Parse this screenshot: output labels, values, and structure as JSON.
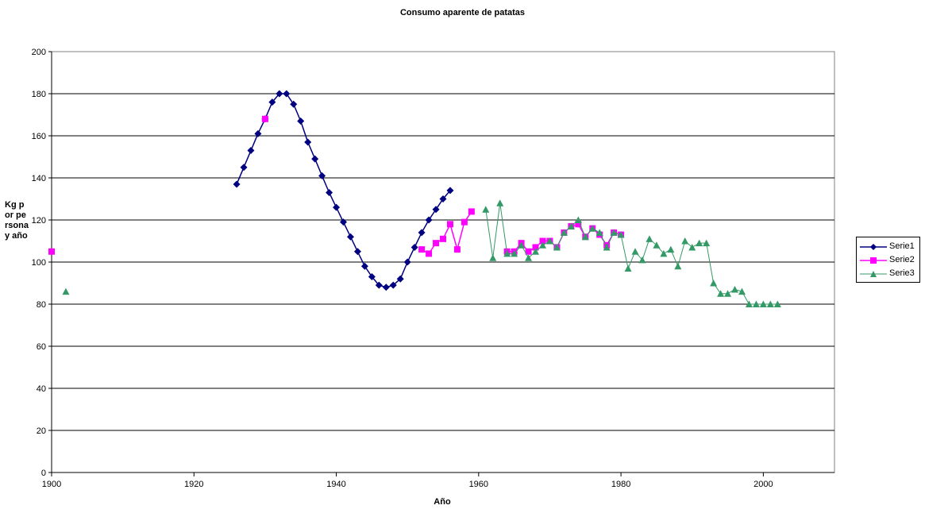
{
  "chart_data": {
    "type": "line",
    "title": "Consumo aparente de patatas",
    "xlabel": "Año",
    "ylabel": "Kg por persona y año",
    "xlim": [
      1900,
      2010
    ],
    "ylim": [
      0,
      200
    ],
    "xticks": [
      1900,
      1920,
      1940,
      1960,
      1980,
      2000
    ],
    "yticks": [
      0,
      20,
      40,
      60,
      80,
      100,
      120,
      140,
      160,
      180,
      200
    ],
    "grid": "horizontal",
    "legend": "right",
    "series": [
      {
        "name": "Serie1",
        "color": "#000080",
        "marker": "diamond",
        "x": [
          1926,
          1927,
          1928,
          1929,
          1930,
          1931,
          1932,
          1933,
          1934,
          1935,
          1936,
          1937,
          1938,
          1939,
          1940,
          1941,
          1942,
          1943,
          1944,
          1945,
          1946,
          1947,
          1948,
          1949,
          1950,
          1951,
          1952,
          1953,
          1954,
          1955,
          1956
        ],
        "y": [
          137,
          145,
          153,
          161,
          168,
          176,
          180,
          180,
          175,
          167,
          157,
          149,
          141,
          133,
          126,
          119,
          112,
          105,
          98,
          93,
          89,
          88,
          89,
          92,
          100,
          107,
          114,
          120,
          125,
          130,
          134
        ]
      },
      {
        "name": "Serie2",
        "color": "#ff00ff",
        "marker": "square",
        "x": [
          1900,
          1930,
          1952,
          1953,
          1954,
          1955,
          1956,
          1957,
          1958,
          1959,
          1964,
          1965,
          1966,
          1967,
          1968,
          1969,
          1970,
          1971,
          1972,
          1973,
          1974,
          1975,
          1976,
          1977,
          1978,
          1979,
          1980
        ],
        "y": [
          105,
          168,
          106,
          104,
          109,
          111,
          118,
          106,
          119,
          124,
          105,
          105,
          109,
          105,
          107,
          110,
          110,
          107,
          114,
          117,
          118,
          112,
          116,
          113,
          108,
          114,
          113
        ],
        "segments": [
          [
            0,
            0
          ],
          [
            1,
            1
          ],
          [
            2,
            9
          ],
          [
            10,
            26
          ]
        ]
      },
      {
        "name": "Serie3",
        "color": "#339966",
        "marker": "triangle",
        "x": [
          1902,
          1961,
          1962,
          1963,
          1964,
          1965,
          1966,
          1967,
          1968,
          1969,
          1970,
          1971,
          1972,
          1973,
          1974,
          1975,
          1976,
          1977,
          1978,
          1979,
          1980,
          1981,
          1982,
          1983,
          1984,
          1985,
          1986,
          1987,
          1988,
          1989,
          1990,
          1991,
          1992,
          1993,
          1994,
          1995,
          1996,
          1997,
          1998,
          1999,
          2000,
          2001,
          2002
        ],
        "y": [
          86,
          125,
          102,
          128,
          104,
          104,
          108,
          102,
          105,
          108,
          110,
          107,
          114,
          117,
          120,
          112,
          116,
          114,
          107,
          114,
          113,
          97,
          105,
          101,
          111,
          108,
          104,
          106,
          98,
          110,
          107,
          109,
          109,
          90,
          85,
          85,
          87,
          86,
          80,
          80,
          80,
          80,
          80
        ],
        "segments": [
          [
            0,
            0
          ],
          [
            1,
            42
          ]
        ]
      }
    ]
  }
}
